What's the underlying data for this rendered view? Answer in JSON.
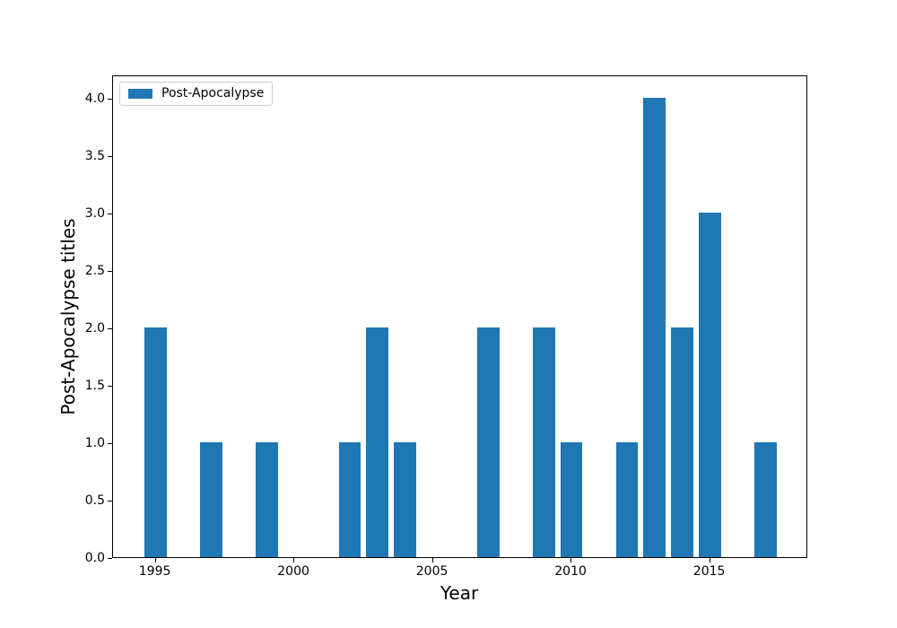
{
  "figure": {
    "background": "#ffffff"
  },
  "chart_data": {
    "type": "bar",
    "title": "",
    "xlabel": "Year",
    "ylabel": "Post-Apocalypse titles",
    "legend": {
      "position": "upper left",
      "entries": [
        {
          "label": "Post-Apocalypse",
          "color": "#1f77b4"
        }
      ]
    },
    "bar_color": "#1f77b4",
    "bar_width_years": 0.8,
    "bars": [
      {
        "year": 1995,
        "value": 2
      },
      {
        "year": 1997,
        "value": 1
      },
      {
        "year": 1999,
        "value": 1
      },
      {
        "year": 2002,
        "value": 1
      },
      {
        "year": 2003,
        "value": 2
      },
      {
        "year": 2004,
        "value": 1
      },
      {
        "year": 2007,
        "value": 2
      },
      {
        "year": 2009,
        "value": 2
      },
      {
        "year": 2010,
        "value": 1
      },
      {
        "year": 2012,
        "value": 1
      },
      {
        "year": 2013,
        "value": 4
      },
      {
        "year": 2014,
        "value": 2
      },
      {
        "year": 2015,
        "value": 3
      },
      {
        "year": 2017,
        "value": 1
      }
    ],
    "xticks": [
      "1995",
      "2000",
      "2005",
      "2010",
      "2015"
    ],
    "yticks": [
      "0.0",
      "0.5",
      "1.0",
      "1.5",
      "2.0",
      "2.5",
      "3.0",
      "3.5",
      "4.0"
    ],
    "xlim": [
      1993.46,
      2018.54
    ],
    "ylim": [
      0,
      4.2
    ],
    "grid": false
  }
}
